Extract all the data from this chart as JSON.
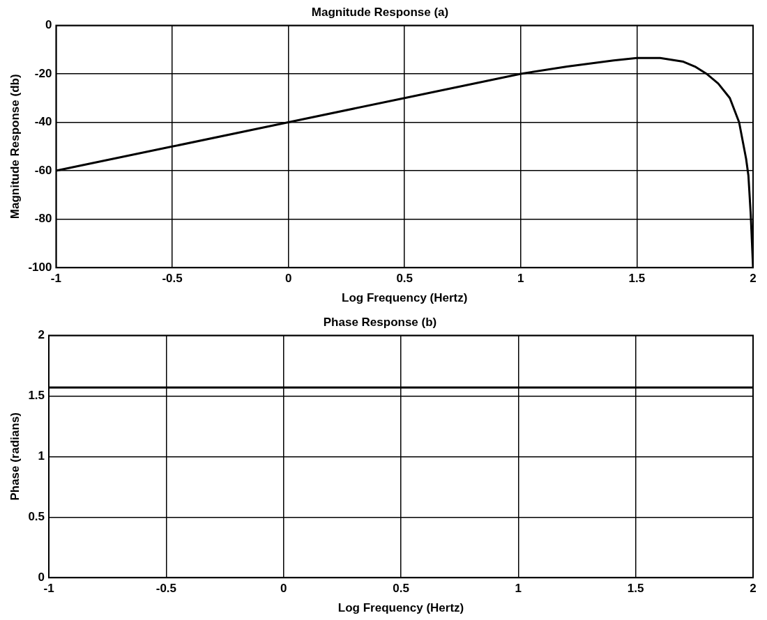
{
  "chart_data": [
    {
      "type": "line",
      "title": "Magnitude Response (a)",
      "xlabel": "Log Frequency (Hertz)",
      "ylabel": "Magnitude Response (db)",
      "x": [
        -1,
        -0.5,
        0,
        0.5,
        1,
        1.2,
        1.4,
        1.5,
        1.6,
        1.7,
        1.75,
        1.8,
        1.85,
        1.9,
        1.94,
        1.97,
        1.98,
        1.99,
        2
      ],
      "series": [
        {
          "color": "#000000",
          "values": [
            -60,
            -50,
            -40,
            -30,
            -20,
            -17,
            -14.5,
            -13.5,
            -13.5,
            -15,
            -17,
            -20,
            -24,
            -30,
            -40,
            -55,
            -62,
            -78,
            -100
          ]
        }
      ],
      "xlim": [
        -1,
        2
      ],
      "xticks": [
        -1,
        -0.5,
        0,
        0.5,
        1,
        1.5,
        2
      ],
      "ylim": [
        -100,
        0
      ],
      "yticks": [
        -100,
        -80,
        -60,
        -40,
        -20,
        0
      ],
      "grid": true,
      "legend": false,
      "marker": "none",
      "line_style": "solid"
    },
    {
      "type": "line",
      "title": "Phase Response (b)",
      "xlabel": "Log Frequency (Hertz)",
      "ylabel": "Phase (radians)",
      "x": [
        -1,
        2
      ],
      "series": [
        {
          "color": "#000000",
          "values": [
            1.57,
            1.57
          ]
        }
      ],
      "xlim": [
        -1,
        2
      ],
      "xticks": [
        -1,
        -0.5,
        0,
        0.5,
        1,
        1.5,
        2
      ],
      "ylim": [
        0,
        2
      ],
      "yticks": [
        0,
        0.5,
        1,
        1.5,
        2
      ],
      "grid": true,
      "legend": false,
      "marker": "none",
      "line_style": "solid"
    }
  ]
}
